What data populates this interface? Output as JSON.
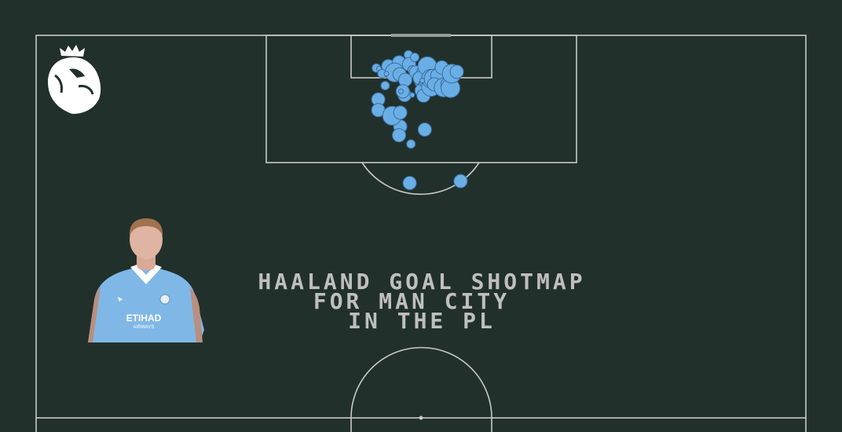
{
  "title_lines": [
    "HAALAND GOAL SHOTMAP",
    "FOR MAN CITY",
    "IN THE PL"
  ],
  "colors": {
    "background": "#22302c",
    "pitch_lines": "#c8c8c8",
    "shot_fill": "#6aaee6",
    "shot_stroke": "#3a6f9c",
    "title": "#bfbfbf",
    "jersey": "#7fb8e6"
  },
  "icons": {
    "logo": "premier-league-lion-logo",
    "player": "player-portrait"
  },
  "chart_data": {
    "type": "scatter",
    "x": [
      0.49,
      0.43,
      0.31,
      0.46,
      0.35,
      0.55,
      0.59,
      0.66,
      0.71,
      0.75,
      0.59,
      0.68,
      0.8,
      0.88,
      0.96,
      0.75,
      0.49,
      0.82,
      0.69,
      0.69,
      0.57,
      0.64,
      0.51,
      0.59,
      0.62,
      0.52,
      0.53,
      0.8,
      1.02,
      1.19,
      0.61,
      0.71,
      0.95,
      0.61,
      0.89,
      0.72,
      0.89,
      0.78,
      0.95,
      0.83,
      0.86,
      0.78,
      0.84,
      0.61,
      0.58,
      1.45,
      1.28,
      1.5,
      1.59,
      1.73,
      1.23,
      2.35,
      2.32
    ],
    "y": [
      -0.52,
      -0.35,
      -0.2,
      -0.19,
      -0.1,
      -0.14,
      -0.08,
      -0.06,
      -0.05,
      -0.03,
      0.04,
      -0.02,
      0.06,
      0.01,
      0.04,
      0.09,
      0.1,
      0.16,
      0.16,
      0.2,
      0.27,
      0.26,
      0.33,
      -0.42,
      -0.34,
      -0.71,
      -0.67,
      -0.57,
      -0.68,
      -0.68,
      -0.62,
      -0.25,
      -0.26,
      -0.55,
      -0.29,
      0.02,
      -0.32,
      0.21,
      -0.14,
      0.36,
      0.46,
      0.42,
      0.47,
      0.49,
      0.57,
      -0.33,
      -0.46,
      0.06,
      -0.35,
      -0.16,
      -0.33,
      -0.18,
      0.63
    ],
    "size": [
      3,
      3,
      2,
      3,
      2,
      2,
      3,
      2,
      2,
      2,
      3,
      3,
      3,
      3,
      3,
      3,
      4,
      4,
      4,
      4,
      2,
      3,
      3,
      4,
      3,
      2,
      1,
      2,
      3,
      3,
      2,
      3,
      3,
      1,
      3,
      1,
      1,
      3,
      1,
      4,
      3,
      3,
      4,
      4,
      3,
      3,
      4,
      3,
      3,
      2,
      3,
      3,
      3
    ],
    "xlabel": "",
    "ylabel": "",
    "grid": false,
    "legend": "none"
  }
}
